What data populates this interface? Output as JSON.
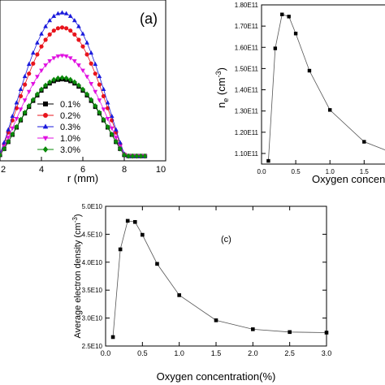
{
  "chart_data": [
    {
      "type": "scatter",
      "panel_label": "(a)",
      "xlabel": "r (mm)",
      "xlim": [
        2,
        10
      ],
      "x_ticks": [
        "2",
        "4",
        "6",
        "8",
        "10"
      ],
      "ylim": [
        0,
        1
      ],
      "series": [
        {
          "name": "0.1%",
          "marker": "square",
          "color": "#000000",
          "peak": 0.52
        },
        {
          "name": "0.2%",
          "marker": "circle",
          "color": "#e8141c",
          "peak": 0.87
        },
        {
          "name": "0.3%",
          "marker": "triangle-up",
          "color": "#1a1adc",
          "peak": 0.97
        },
        {
          "name": "1.0%",
          "marker": "triangle-down",
          "color": "#e010e0",
          "peak": 0.68
        },
        {
          "name": "3.0%",
          "marker": "diamond",
          "color": "#0a8a0a",
          "peak": 0.53
        }
      ]
    },
    {
      "type": "line",
      "xlabel": "Oxygen concentr",
      "ylabel": "n",
      "ylabel_sub": "e",
      "ylabel_unit": " (cm",
      "ylabel_sup": "-3",
      "ylabel_close": ")",
      "xlim": [
        0,
        1.9
      ],
      "ylim": [
        105000000000.0,
        180000000000.0
      ],
      "x_ticks": [
        "0.0",
        "0.5",
        "1.0",
        "1.5"
      ],
      "y_ticks": [
        "1.10E11",
        "1.20E11",
        "1.30E11",
        "1.40E11",
        "1.50E11",
        "1.60E11",
        "1.70E11",
        "1.80E11"
      ],
      "x": [
        0.1,
        0.2,
        0.3,
        0.4,
        0.5,
        0.7,
        1.0,
        1.5
      ],
      "y": [
        106500000000.0,
        159500000000.0,
        175500000000.0,
        174500000000.0,
        166500000000.0,
        149000000000.0,
        130500000000.0,
        115500000000.0
      ]
    },
    {
      "type": "line",
      "panel_label": "(c)",
      "xlabel": "Oxygen  concentration(%)",
      "ylabel": "Average electron density (cm",
      "ylabel_sup": "-3",
      "ylabel_close": ")",
      "xlim": [
        0,
        3.0
      ],
      "ylim": [
        25000000000.0,
        50000000000.0
      ],
      "x_ticks": [
        "0.0",
        "0.5",
        "1.0",
        "1.5",
        "2.0",
        "2.5",
        "3.0"
      ],
      "y_ticks": [
        "2.5E10",
        "3.0E10",
        "3.5E10",
        "4.0E10",
        "4.5E10",
        "5.0E10"
      ],
      "x": [
        0.1,
        0.2,
        0.3,
        0.4,
        0.5,
        0.7,
        1.0,
        1.5,
        2.0,
        2.5,
        3.0
      ],
      "y": [
        26600000000.0,
        42300000000.0,
        47400000000.0,
        47200000000.0,
        44900000000.0,
        39700000000.0,
        34100000000.0,
        29600000000.0,
        28000000000.0,
        27500000000.0,
        27400000000.0
      ]
    }
  ]
}
